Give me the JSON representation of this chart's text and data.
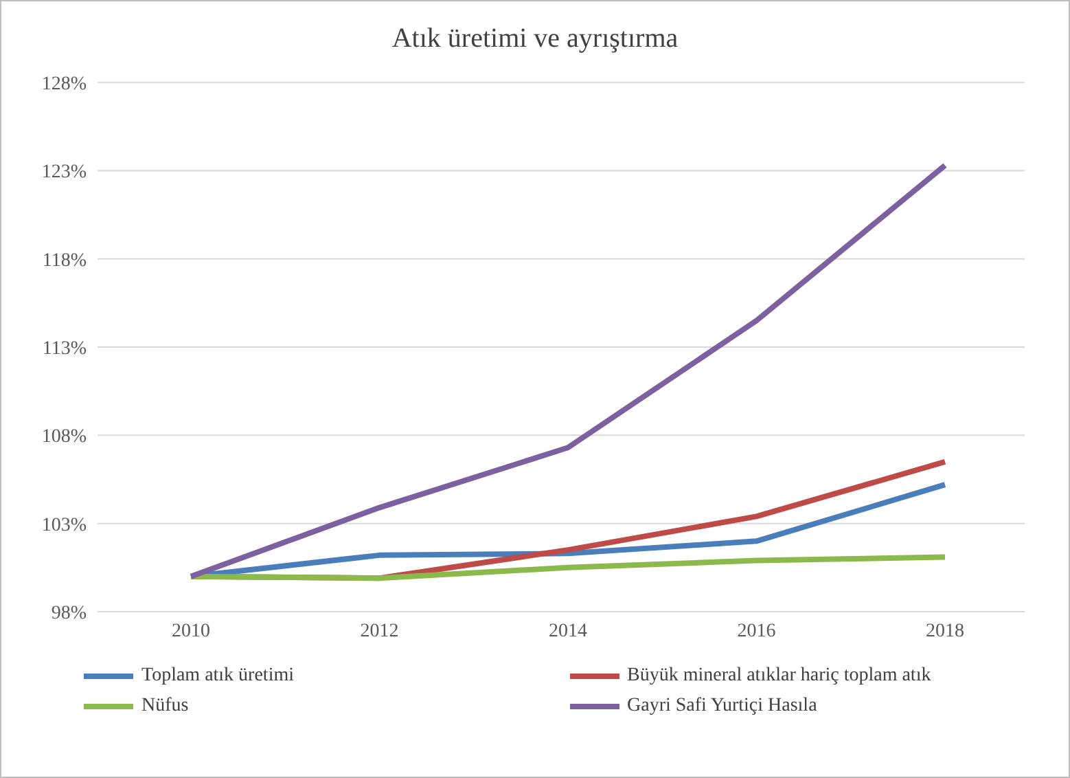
{
  "chart_data": {
    "type": "line",
    "title": "Atık üretimi ve ayrıştırma",
    "categories": [
      "2010",
      "2012",
      "2014",
      "2016",
      "2018"
    ],
    "series": [
      {
        "name": "Toplam atık üretimi",
        "color": "#4a7ebb",
        "values": [
          100,
          101.2,
          101.3,
          102.0,
          105.2
        ]
      },
      {
        "name": "Büyük mineral atıklar hariç toplam atık",
        "color": "#be4b48",
        "values": [
          100,
          99.9,
          101.5,
          103.4,
          106.5
        ]
      },
      {
        "name": "Nüfus",
        "color": "#8cb94c",
        "values": [
          100,
          99.9,
          100.5,
          100.9,
          101.1
        ]
      },
      {
        "name": "Gayri Safi Yurtiçi Hasıla",
        "color": "#7d60a0",
        "values": [
          100,
          103.9,
          107.3,
          114.5,
          123.3
        ]
      }
    ],
    "ylim": [
      98,
      128
    ],
    "yticks": [
      {
        "value": 98,
        "label": "98%"
      },
      {
        "value": 103,
        "label": "103%"
      },
      {
        "value": 108,
        "label": "108%"
      },
      {
        "value": 113,
        "label": "113%"
      },
      {
        "value": 118,
        "label": "118%"
      },
      {
        "value": 123,
        "label": "123%"
      },
      {
        "value": 128,
        "label": "128%"
      }
    ],
    "grid": "y",
    "legend": "bottom",
    "marker": "none",
    "line_style": "solid"
  }
}
